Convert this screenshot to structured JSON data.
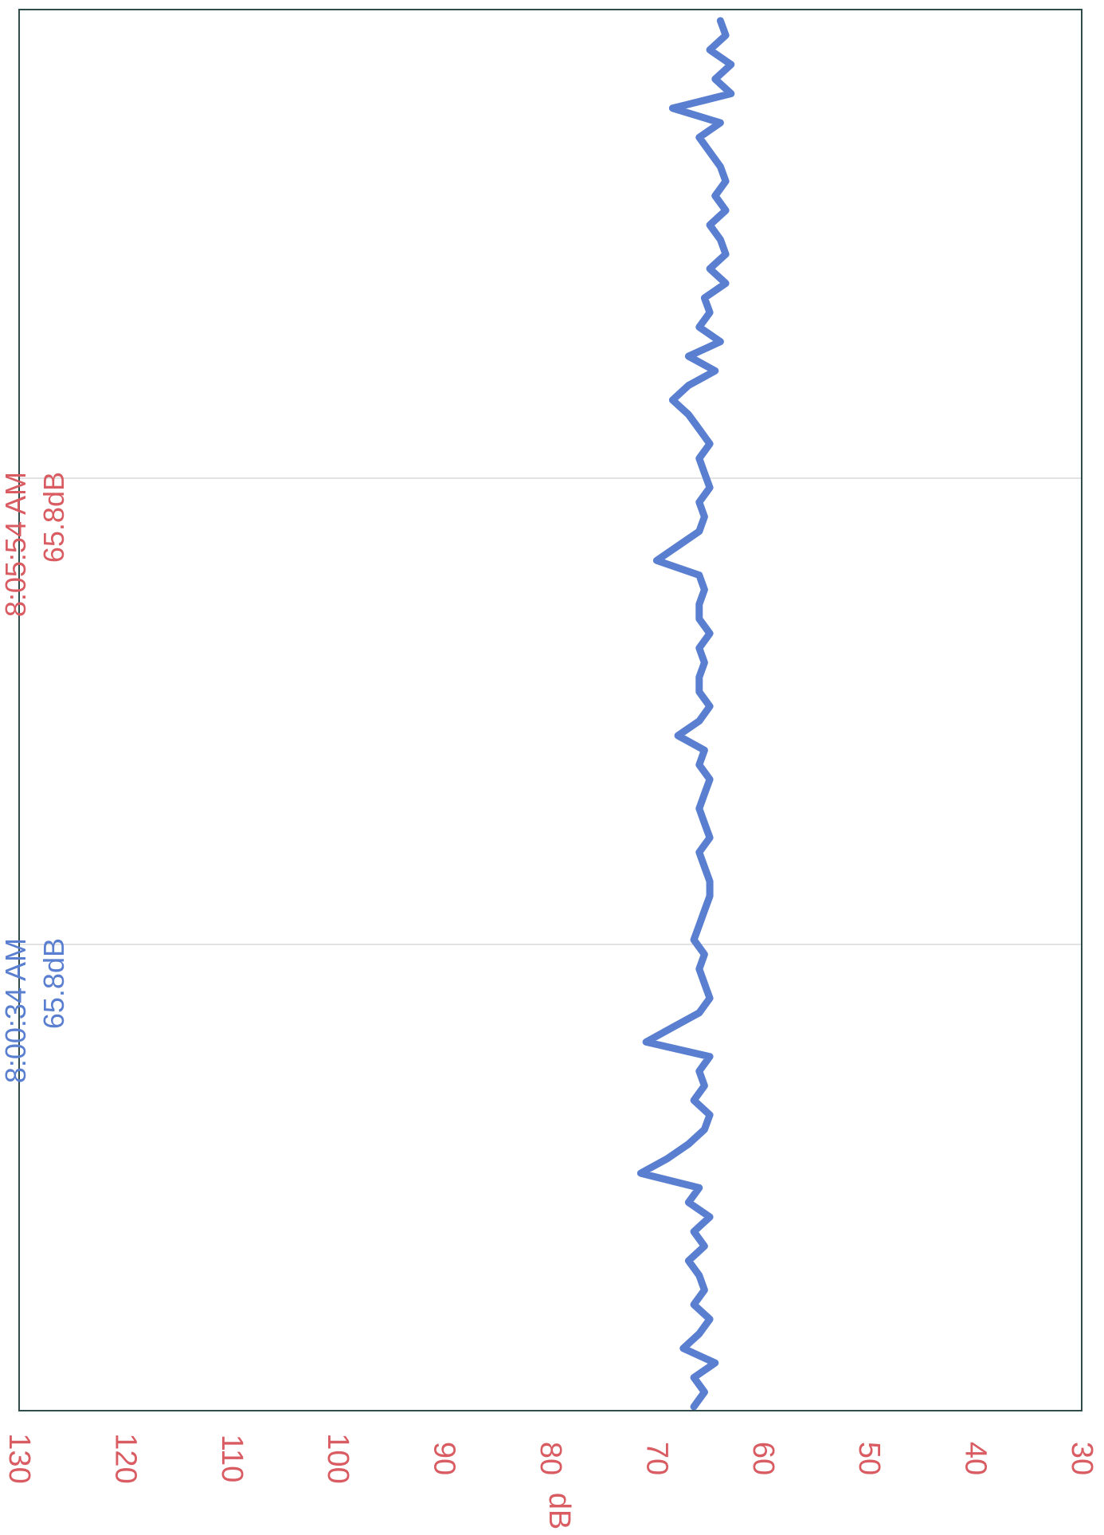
{
  "chart_data": {
    "type": "line",
    "orientation": "rotated-90-clockwise",
    "ylabel": "dB",
    "ylim": [
      30,
      130
    ],
    "ticks": [
      "130",
      "120",
      "110",
      "100",
      "90",
      "80",
      "70",
      "60",
      "50",
      "40",
      "30"
    ],
    "grid": false,
    "series": [
      {
        "color": "#5a7fd0",
        "values": [
          66.5,
          65.5,
          66.5,
          64.5,
          67.5,
          66,
          65,
          66.5,
          65.5,
          66,
          67,
          65.5,
          66.5,
          65,
          67,
          66,
          71.5,
          69,
          67,
          65.5,
          65,
          66.5,
          65.5,
          66,
          65,
          71,
          68.5,
          66,
          65,
          65.5,
          66,
          65.5,
          66.5,
          66,
          65.5,
          65,
          65,
          65.5,
          66,
          65,
          65.5,
          66,
          65.5,
          65,
          66,
          65.5,
          68,
          66,
          65,
          66,
          66,
          65.5,
          66,
          65,
          66,
          66,
          65.5,
          66,
          70,
          68,
          66,
          65.5,
          66,
          65,
          65.5,
          66,
          65,
          66,
          67,
          68.5,
          67,
          64.5,
          67,
          64,
          66,
          65,
          65.5,
          63.5,
          65,
          63.5,
          64,
          65,
          63.5,
          64.5,
          63.5,
          64,
          65,
          66,
          64,
          68.5,
          63,
          64.5,
          63,
          65,
          63.5,
          64
        ]
      }
    ],
    "cursors": [
      {
        "time": "8:00:34 AM",
        "value": "65.8dB",
        "color": "#5a7fd0"
      },
      {
        "time": "8:05:54 AM",
        "value": "65.8dB",
        "color": "#d95c63"
      }
    ]
  }
}
